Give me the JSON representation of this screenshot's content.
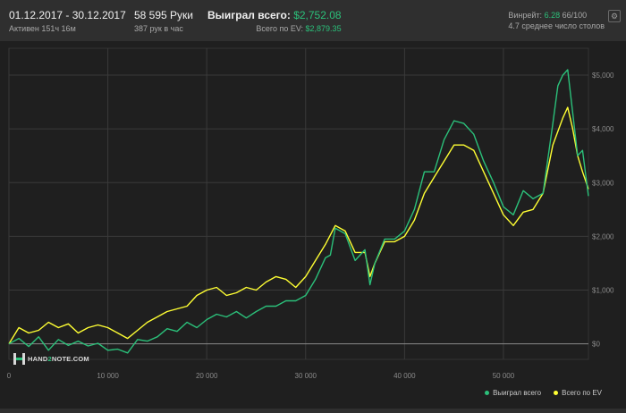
{
  "header": {
    "date_range": "01.12.2017 - 30.12.2017",
    "active_time": "Активен 151ч 16м",
    "hands_total": "58 595 Руки",
    "hands_per_hour": "387 рук в час",
    "won_total_label": "Выиграл всего: ",
    "won_total_value": "$2,752.08",
    "ev_total_label": "Всего по EV: ",
    "ev_total_value": "$2,879.35",
    "winrate_label": "Винрейт: ",
    "winrate_value": "6.28",
    "winrate_denominator": " 66/100",
    "avg_tables": "4.7 среднее число столов",
    "settings_icon": "gear-icon"
  },
  "logo": {
    "text_before": "HAND",
    "text_two": "2",
    "text_after": "NOTE.COM"
  },
  "colors": {
    "won": "#2bc07a",
    "ev": "#ffff33",
    "bg": "#1f1f1f",
    "grid": "#3a3a3a"
  },
  "chart_data": {
    "type": "line",
    "x_ticks": [
      0,
      10000,
      20000,
      30000,
      40000,
      50000
    ],
    "x_tick_labels": [
      "0",
      "10 000",
      "20 000",
      "30 000",
      "40 000",
      "50 000"
    ],
    "y_ticks": [
      0,
      1000,
      2000,
      3000,
      4000,
      5000
    ],
    "y_tick_labels": [
      "$0",
      "$1,000",
      "$2,000",
      "$3,000",
      "$4,000",
      "$5,000"
    ],
    "xlim": [
      0,
      58595
    ],
    "ylim": [
      -290,
      5500
    ],
    "grid": true,
    "legend_position": "bottom-right",
    "series": [
      {
        "name": "Выиграл всего",
        "color": "#2bc07a",
        "points": [
          [
            0,
            0
          ],
          [
            1000,
            100
          ],
          [
            2000,
            -50
          ],
          [
            3000,
            130
          ],
          [
            4000,
            -120
          ],
          [
            5000,
            80
          ],
          [
            6000,
            -30
          ],
          [
            7000,
            50
          ],
          [
            8000,
            -40
          ],
          [
            9000,
            10
          ],
          [
            10000,
            -120
          ],
          [
            11000,
            -100
          ],
          [
            12000,
            -170
          ],
          [
            13000,
            80
          ],
          [
            14000,
            50
          ],
          [
            15000,
            130
          ],
          [
            16000,
            280
          ],
          [
            17000,
            230
          ],
          [
            18000,
            400
          ],
          [
            19000,
            300
          ],
          [
            20000,
            450
          ],
          [
            21000,
            550
          ],
          [
            22000,
            500
          ],
          [
            23000,
            600
          ],
          [
            24000,
            480
          ],
          [
            25000,
            600
          ],
          [
            26000,
            700
          ],
          [
            27000,
            700
          ],
          [
            28000,
            800
          ],
          [
            29000,
            800
          ],
          [
            30000,
            900
          ],
          [
            31000,
            1200
          ],
          [
            32000,
            1600
          ],
          [
            32500,
            1650
          ],
          [
            33000,
            2150
          ],
          [
            34000,
            2050
          ],
          [
            35000,
            1550
          ],
          [
            36000,
            1750
          ],
          [
            36500,
            1100
          ],
          [
            37000,
            1500
          ],
          [
            38000,
            1950
          ],
          [
            39000,
            1950
          ],
          [
            40000,
            2100
          ],
          [
            41000,
            2500
          ],
          [
            42000,
            3200
          ],
          [
            43000,
            3200
          ],
          [
            44000,
            3800
          ],
          [
            45000,
            4150
          ],
          [
            46000,
            4100
          ],
          [
            47000,
            3900
          ],
          [
            48000,
            3400
          ],
          [
            49000,
            3000
          ],
          [
            50000,
            2550
          ],
          [
            51000,
            2400
          ],
          [
            52000,
            2850
          ],
          [
            53000,
            2700
          ],
          [
            54000,
            2800
          ],
          [
            55000,
            4100
          ],
          [
            55500,
            4800
          ],
          [
            56000,
            5000
          ],
          [
            56500,
            5100
          ],
          [
            57000,
            4300
          ],
          [
            57500,
            3500
          ],
          [
            58000,
            3600
          ],
          [
            58595,
            2750
          ]
        ]
      },
      {
        "name": "Всего по EV",
        "color": "#ffff33",
        "points": [
          [
            0,
            0
          ],
          [
            1000,
            300
          ],
          [
            2000,
            200
          ],
          [
            3000,
            250
          ],
          [
            4000,
            400
          ],
          [
            5000,
            300
          ],
          [
            6000,
            370
          ],
          [
            7000,
            200
          ],
          [
            8000,
            300
          ],
          [
            9000,
            350
          ],
          [
            10000,
            300
          ],
          [
            11000,
            200
          ],
          [
            12000,
            100
          ],
          [
            13000,
            250
          ],
          [
            14000,
            400
          ],
          [
            15000,
            500
          ],
          [
            16000,
            600
          ],
          [
            17000,
            650
          ],
          [
            18000,
            700
          ],
          [
            19000,
            900
          ],
          [
            20000,
            1000
          ],
          [
            21000,
            1050
          ],
          [
            22000,
            900
          ],
          [
            23000,
            950
          ],
          [
            24000,
            1050
          ],
          [
            25000,
            1000
          ],
          [
            26000,
            1150
          ],
          [
            27000,
            1250
          ],
          [
            28000,
            1200
          ],
          [
            29000,
            1050
          ],
          [
            30000,
            1250
          ],
          [
            31000,
            1550
          ],
          [
            32000,
            1850
          ],
          [
            33000,
            2200
          ],
          [
            34000,
            2100
          ],
          [
            35000,
            1700
          ],
          [
            36000,
            1700
          ],
          [
            36500,
            1250
          ],
          [
            37000,
            1500
          ],
          [
            38000,
            1900
          ],
          [
            39000,
            1900
          ],
          [
            40000,
            2000
          ],
          [
            41000,
            2300
          ],
          [
            42000,
            2800
          ],
          [
            43000,
            3100
          ],
          [
            44000,
            3400
          ],
          [
            45000,
            3700
          ],
          [
            46000,
            3700
          ],
          [
            47000,
            3600
          ],
          [
            48000,
            3200
          ],
          [
            49000,
            2800
          ],
          [
            50000,
            2400
          ],
          [
            51000,
            2200
          ],
          [
            52000,
            2450
          ],
          [
            53000,
            2500
          ],
          [
            54000,
            2800
          ],
          [
            55000,
            3700
          ],
          [
            56000,
            4200
          ],
          [
            56500,
            4400
          ],
          [
            57000,
            4000
          ],
          [
            57500,
            3500
          ],
          [
            58000,
            3200
          ],
          [
            58595,
            2880
          ]
        ]
      }
    ]
  }
}
